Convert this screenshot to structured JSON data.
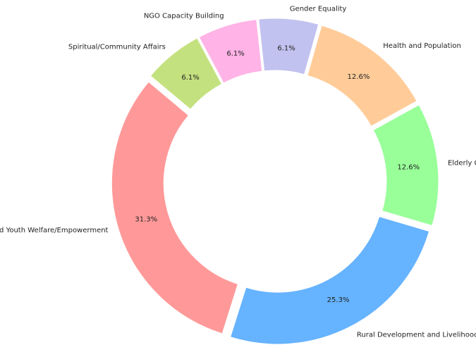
{
  "chart_data": {
    "type": "pie",
    "donut": true,
    "categories": [
      "d and Youth Welfare/Empowerment",
      "Rural Development and Livelihoods",
      "Elderly Ca",
      "Health and Population",
      "Gender Equality",
      "NGO Capacity Building",
      "Spiritual/Community Affairs"
    ],
    "values": [
      31.3,
      25.3,
      12.6,
      12.6,
      6.1,
      6.1,
      6.1
    ],
    "value_labels": [
      "31.3%",
      "25.3%",
      "12.6%",
      "12.6%",
      "6.1%",
      "6.1%",
      "6.1%"
    ],
    "colors": [
      "#ff9999",
      "#66b3ff",
      "#99ff99",
      "#ffcc99",
      "#c2c2f0",
      "#ffb3e6",
      "#c4e17f"
    ]
  }
}
